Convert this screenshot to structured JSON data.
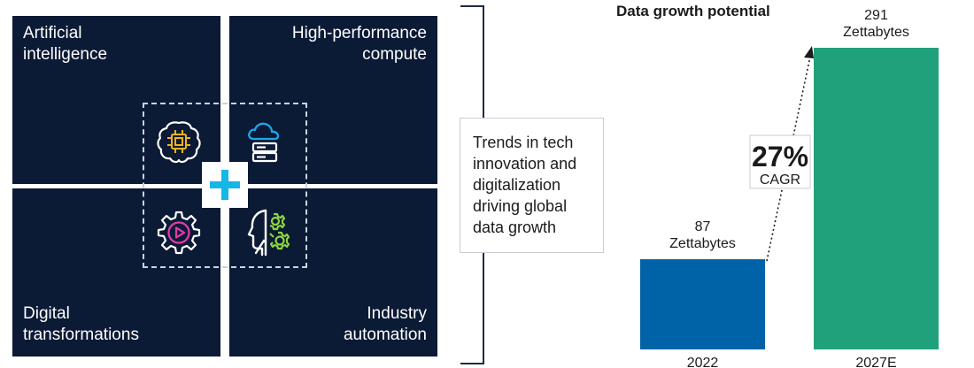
{
  "quadrants": {
    "ai": {
      "line1": "Artificial",
      "line2": "intelligence"
    },
    "hpc": {
      "line1": "High-performance",
      "line2": "compute"
    },
    "dt": {
      "line1": "Digital",
      "line2": "transformations"
    },
    "ia": {
      "line1": "Industry",
      "line2": "automation"
    }
  },
  "icons": [
    "brain-chip-icon",
    "cloud-server-icon",
    "gear-play-icon",
    "robot-gear-icon",
    "plus-icon"
  ],
  "trend_text": "Trends in tech innovation and digitalization driving global data growth",
  "colors": {
    "navy": "#0b1a35",
    "accent_cyan": "#16b6e6",
    "icon_yellow": "#f2b31b",
    "icon_blue": "#1ea7e6",
    "icon_pink": "#e03ca8",
    "icon_green": "#8bd63c",
    "bar_2022": "#0063a7",
    "bar_2027": "#21a07c"
  },
  "chart_data": {
    "type": "bar",
    "title": "Data growth potential",
    "categories": [
      "2022",
      "2027E"
    ],
    "values": [
      87,
      291
    ],
    "value_labels": [
      {
        "number": "87",
        "unit": "Zettabytes"
      },
      {
        "number": "291",
        "unit": "Zettabytes"
      }
    ],
    "annotation": {
      "value": "27%",
      "label": "CAGR"
    },
    "ylim": [
      0,
      300
    ],
    "xlabel": "",
    "ylabel": ""
  }
}
